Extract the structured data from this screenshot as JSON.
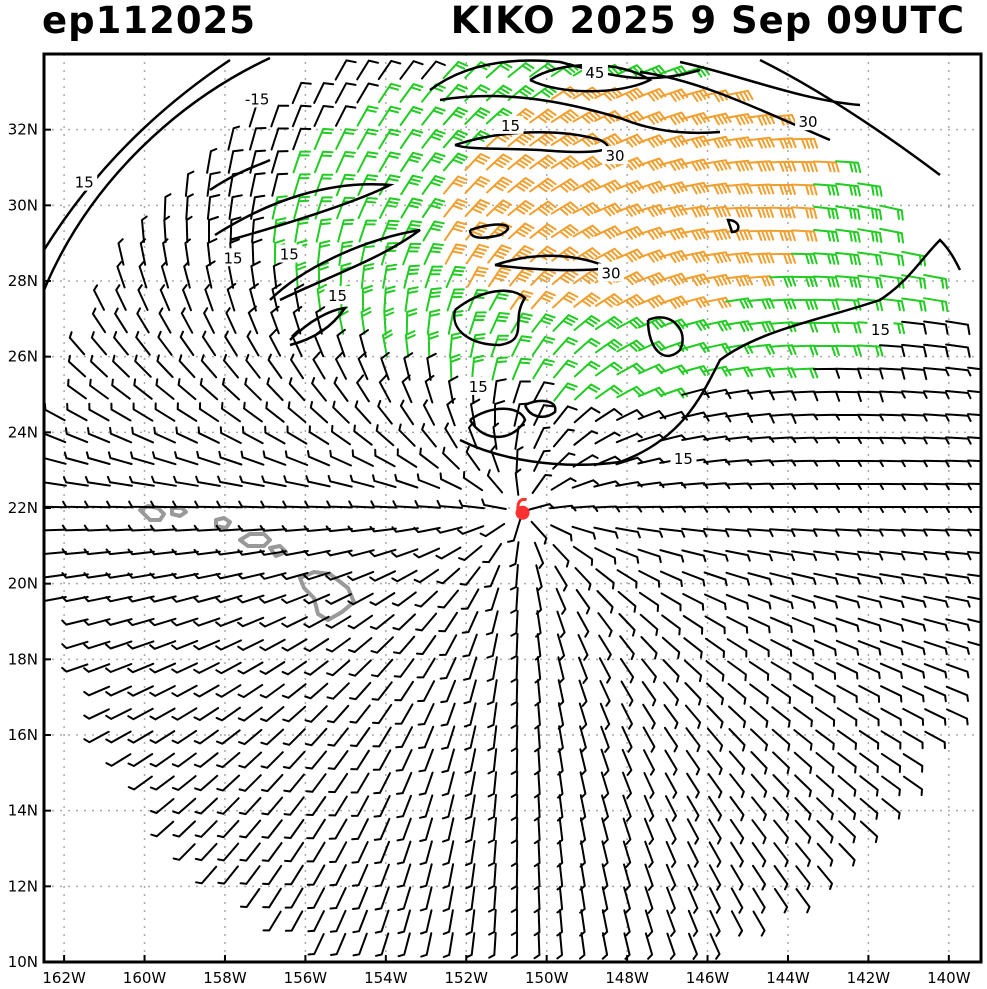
{
  "header": {
    "storm_id": "ep112025",
    "storm_label": "KIKO 2025   9 Sep 09UTC"
  },
  "map": {
    "lon_range": [
      -162.5,
      -139.2
    ],
    "lat_range": [
      10,
      34
    ],
    "lon_ticks": [
      "162W",
      "160W",
      "158W",
      "156W",
      "154W",
      "152W",
      "150W",
      "148W",
      "146W",
      "144W",
      "142W",
      "140W"
    ],
    "lat_ticks": [
      "10N",
      "12N",
      "14N",
      "16N",
      "18N",
      "20N",
      "22N",
      "24N",
      "26N",
      "28N",
      "30N",
      "32N"
    ],
    "grid": "dotted",
    "storm_center": {
      "lon": -150.6,
      "lat": 21.9,
      "marker_color": "#ff3030"
    },
    "barb_colors": {
      "calm": "#000000",
      "moderate": "#22cc22",
      "strong": "#f0a030"
    },
    "contour_labels": [
      {
        "text": "45",
        "lon": -148.8,
        "lat": 33.5
      },
      {
        "text": "30",
        "lon": -143.5,
        "lat": 32.2
      },
      {
        "text": "30",
        "lon": -148.3,
        "lat": 31.3
      },
      {
        "text": "15",
        "lon": -150.9,
        "lat": 32.1
      },
      {
        "text": "-15",
        "lon": -157.2,
        "lat": 32.8
      },
      {
        "text": "15",
        "lon": -161.5,
        "lat": 30.6
      },
      {
        "text": "15",
        "lon": -157.8,
        "lat": 28.6
      },
      {
        "text": "15",
        "lon": -156.4,
        "lat": 28.7
      },
      {
        "text": "15",
        "lon": -155.2,
        "lat": 27.6
      },
      {
        "text": "30",
        "lon": -148.4,
        "lat": 28.2
      },
      {
        "text": "15",
        "lon": -151.7,
        "lat": 25.2
      },
      {
        "text": "15",
        "lon": -146.6,
        "lat": 23.3
      },
      {
        "text": "15",
        "lon": -141.7,
        "lat": 26.7
      }
    ]
  }
}
